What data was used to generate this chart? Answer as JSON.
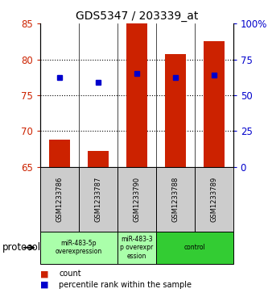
{
  "title": "GDS5347 / 203339_at",
  "samples": [
    "GSM1233786",
    "GSM1233787",
    "GSM1233790",
    "GSM1233788",
    "GSM1233789"
  ],
  "bar_values": [
    68.8,
    67.2,
    85.0,
    80.7,
    82.5
  ],
  "bar_bottom": 65.0,
  "percentile_values": [
    77.5,
    76.8,
    78.0,
    77.5,
    77.8
  ],
  "ylim_left": [
    65,
    85
  ],
  "ylim_right": [
    0,
    100
  ],
  "yticks_left": [
    65,
    70,
    75,
    80,
    85
  ],
  "yticks_right": [
    0,
    25,
    50,
    75,
    100
  ],
  "ytick_labels_right": [
    "0",
    "25",
    "50",
    "75",
    "100%"
  ],
  "bar_color": "#cc2200",
  "percentile_color": "#0000cc",
  "groups": [
    {
      "label": "miR-483-5p\noverexpression",
      "samples": [
        "GSM1233786",
        "GSM1233787"
      ],
      "color": "#aaffaa"
    },
    {
      "label": "miR-483-3\np overexpr\nession",
      "samples": [
        "GSM1233790"
      ],
      "color": "#aaffaa"
    },
    {
      "label": "control",
      "samples": [
        "GSM1233788",
        "GSM1233789"
      ],
      "color": "#33cc33"
    }
  ],
  "protocol_label": "protocol",
  "legend_count_label": "count",
  "legend_percentile_label": "percentile rank within the sample",
  "bar_width": 0.55,
  "background_color": "#ffffff"
}
